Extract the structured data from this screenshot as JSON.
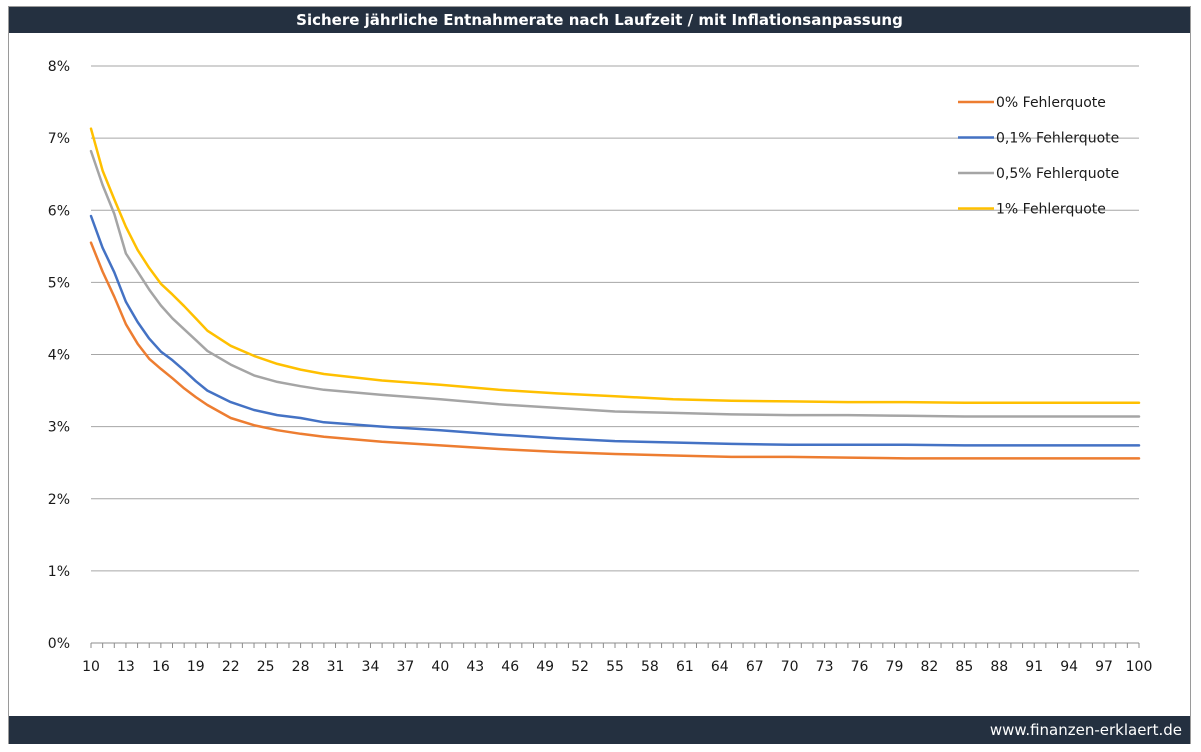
{
  "title": "Sichere jährliche Entnahmerate nach Laufzeit / mit Inflationsanpassung",
  "footer": "www.finanzen-erklaert.de",
  "chart_data": {
    "type": "line",
    "title": "Sichere jährliche Entnahmerate nach Laufzeit / mit Inflationsanpassung",
    "xlabel": "",
    "ylabel": "",
    "xlim": [
      10,
      100
    ],
    "ylim": [
      0,
      8
    ],
    "grid": true,
    "legend_position": "top-right",
    "x_ticks": [
      10,
      13,
      16,
      19,
      22,
      25,
      28,
      31,
      34,
      37,
      40,
      43,
      46,
      49,
      52,
      55,
      58,
      61,
      64,
      67,
      70,
      73,
      76,
      79,
      82,
      85,
      88,
      91,
      94,
      97,
      100
    ],
    "y_ticks": [
      "0%",
      "1%",
      "2%",
      "3%",
      "4%",
      "5%",
      "6%",
      "7%",
      "8%"
    ],
    "x": [
      10,
      11,
      12,
      13,
      14,
      15,
      16,
      17,
      18,
      19,
      20,
      22,
      24,
      26,
      28,
      30,
      35,
      40,
      45,
      50,
      55,
      60,
      65,
      70,
      75,
      80,
      85,
      90,
      95,
      100
    ],
    "series": [
      {
        "name": "0% Fehlerquote",
        "color": "#ED7D31",
        "values": [
          5.55,
          5.15,
          4.8,
          4.42,
          4.15,
          3.94,
          3.8,
          3.67,
          3.53,
          3.41,
          3.3,
          3.12,
          3.02,
          2.95,
          2.9,
          2.86,
          2.79,
          2.74,
          2.69,
          2.65,
          2.62,
          2.6,
          2.58,
          2.58,
          2.57,
          2.56,
          2.56,
          2.56,
          2.56,
          2.56
        ]
      },
      {
        "name": "0,1% Fehlerquote",
        "color": "#4472C4",
        "values": [
          5.92,
          5.48,
          5.14,
          4.73,
          4.45,
          4.22,
          4.04,
          3.92,
          3.78,
          3.63,
          3.5,
          3.34,
          3.23,
          3.16,
          3.12,
          3.06,
          3.0,
          2.95,
          2.89,
          2.84,
          2.8,
          2.78,
          2.76,
          2.75,
          2.75,
          2.75,
          2.74,
          2.74,
          2.74,
          2.74
        ]
      },
      {
        "name": "0,5% Fehlerquote",
        "color": "#A5A5A5",
        "values": [
          6.82,
          6.35,
          5.95,
          5.4,
          5.15,
          4.9,
          4.68,
          4.5,
          4.35,
          4.2,
          4.05,
          3.86,
          3.71,
          3.62,
          3.56,
          3.51,
          3.44,
          3.38,
          3.31,
          3.26,
          3.21,
          3.19,
          3.17,
          3.16,
          3.16,
          3.15,
          3.14,
          3.14,
          3.14,
          3.14
        ]
      },
      {
        "name": "1% Fehlerquote",
        "color": "#FFC000",
        "values": [
          7.13,
          6.55,
          6.15,
          5.77,
          5.45,
          5.2,
          4.98,
          4.83,
          4.67,
          4.5,
          4.33,
          4.12,
          3.98,
          3.87,
          3.79,
          3.73,
          3.64,
          3.58,
          3.51,
          3.46,
          3.42,
          3.38,
          3.36,
          3.35,
          3.34,
          3.34,
          3.33,
          3.33,
          3.33,
          3.33
        ]
      }
    ]
  }
}
